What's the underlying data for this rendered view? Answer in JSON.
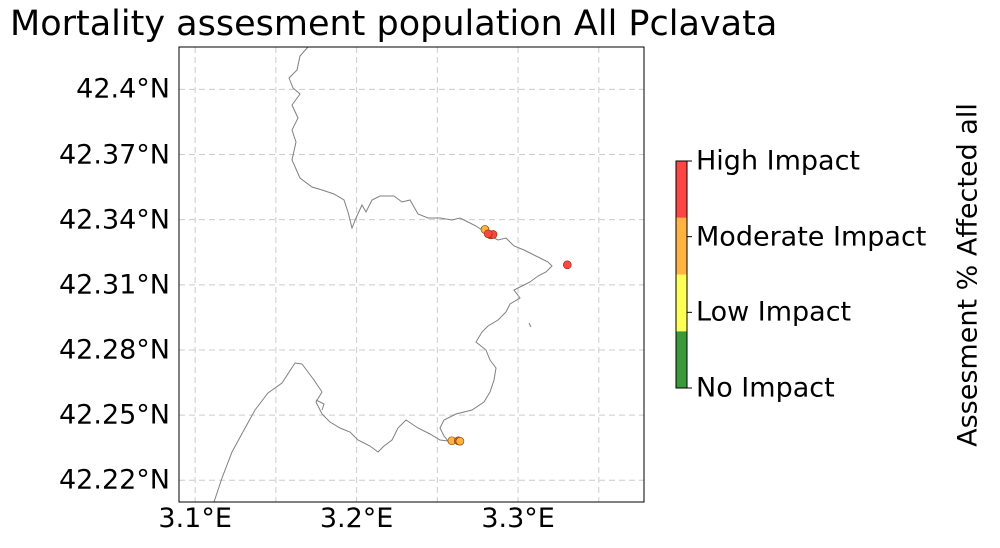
{
  "chart_data": {
    "type": "scatter",
    "title": "Mortality assesment population All Pclavata",
    "x_ticks": [
      "3.1°E",
      "3.2°E",
      "3.3°E"
    ],
    "y_ticks": [
      "42.4°N",
      "42.37°N",
      "42.34°N",
      "42.31°N",
      "42.28°N",
      "42.25°N",
      "42.22°N"
    ],
    "xlim": [
      3.09,
      3.378
    ],
    "ylim": [
      42.21,
      42.4195
    ],
    "grid": true,
    "colorbar": {
      "label": "Assesment % Affected all",
      "levels": [
        "No Impact",
        "Low Impact",
        "Moderate Impact",
        "High Impact"
      ],
      "colors": [
        "#3a9a3a",
        "#ffff55",
        "#ffb340",
        "#ff4444"
      ]
    },
    "points": [
      {
        "lon": 3.2795,
        "lat": 42.3355,
        "level": "Moderate Impact"
      },
      {
        "lon": 3.283,
        "lat": 42.333,
        "level": "High Impact"
      },
      {
        "lon": 3.2845,
        "lat": 42.3332,
        "level": "High Impact"
      },
      {
        "lon": 3.2815,
        "lat": 42.3335,
        "level": "High Impact"
      },
      {
        "lon": 3.3305,
        "lat": 42.3192,
        "level": "High Impact"
      },
      {
        "lon": 3.259,
        "lat": 42.2382,
        "level": "Moderate Impact"
      },
      {
        "lon": 3.263,
        "lat": 42.2382,
        "level": "High Impact"
      },
      {
        "lon": 3.264,
        "lat": 42.238,
        "level": "Moderate Impact"
      }
    ]
  }
}
